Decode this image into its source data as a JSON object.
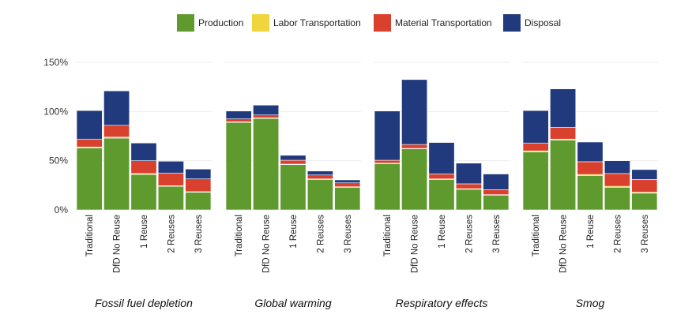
{
  "chart_data": {
    "type": "bar",
    "stacked": true,
    "facets": [
      "Fossil fuel depletion",
      "Global warming",
      "Respiratory effects",
      "Smog"
    ],
    "categories": [
      "Traditional",
      "DfD No Reuse",
      "1 Reuse",
      "2 Reuses",
      "3 Reuses"
    ],
    "series": [
      {
        "name": "Production",
        "color": "#5f9a2e"
      },
      {
        "name": "Labor Transportation",
        "color": "#f0d63c"
      },
      {
        "name": "Material Transportation",
        "color": "#d9412e"
      },
      {
        "name": "Disposal",
        "color": "#213a7d"
      }
    ],
    "values": {
      "Fossil fuel depletion": [
        [
          63,
          1,
          8,
          29
        ],
        [
          73,
          1,
          12,
          35
        ],
        [
          36,
          1,
          13,
          18
        ],
        [
          24,
          0.5,
          13,
          12
        ],
        [
          18,
          0.5,
          13,
          10
        ]
      ],
      "Global warming": [
        [
          89,
          0.5,
          3,
          8
        ],
        [
          93,
          0.5,
          3,
          10
        ],
        [
          46,
          0.5,
          4,
          5
        ],
        [
          31,
          0.5,
          4,
          4
        ],
        [
          23,
          0.5,
          4,
          3
        ]
      ],
      "Respiratory effects": [
        [
          47,
          0.5,
          3,
          50
        ],
        [
          62,
          0.5,
          4,
          66
        ],
        [
          31,
          0.5,
          5,
          32
        ],
        [
          21,
          0.5,
          5,
          21
        ],
        [
          15,
          0.5,
          5,
          16
        ]
      ],
      "Smog": [
        [
          59,
          1,
          8,
          33
        ],
        [
          71,
          1,
          12,
          39
        ],
        [
          35,
          1,
          13,
          20
        ],
        [
          23,
          1,
          13,
          13
        ],
        [
          17,
          1,
          13,
          10
        ]
      ]
    },
    "y_ticks": [
      "0%",
      "50%",
      "100%",
      "150%"
    ],
    "ylim": [
      0,
      150
    ],
    "legend_position": "top",
    "xlabel": "",
    "ylabel": ""
  }
}
